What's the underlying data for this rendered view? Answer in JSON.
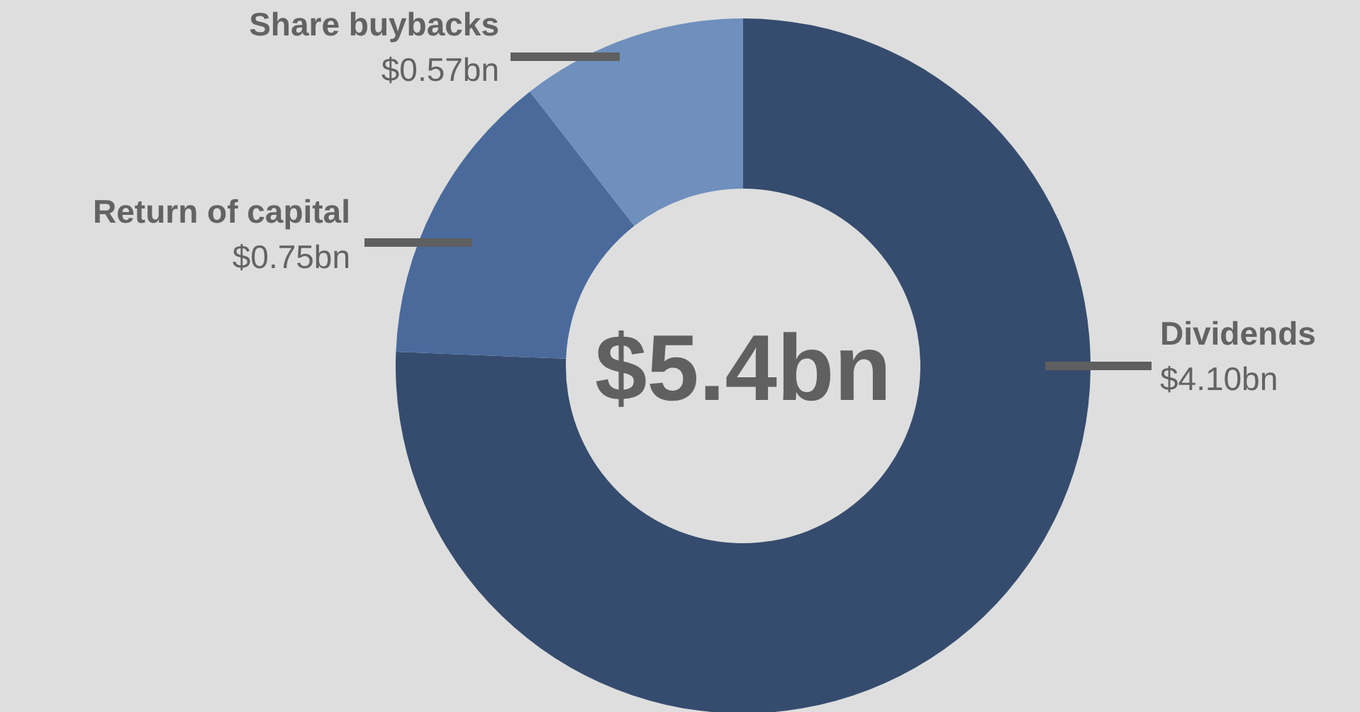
{
  "chart_data": {
    "type": "donut",
    "categories": [
      "Dividends",
      "Return of capital",
      "Share buybacks"
    ],
    "values": [
      4.1,
      0.75,
      0.57
    ],
    "colors": [
      "#354c6e",
      "#4a6a9c",
      "#6f8fbd"
    ],
    "value_labels": [
      "$4.10bn",
      "$0.75bn",
      "$0.57bn"
    ],
    "annotations": [
      "$5.4bn"
    ]
  }
}
